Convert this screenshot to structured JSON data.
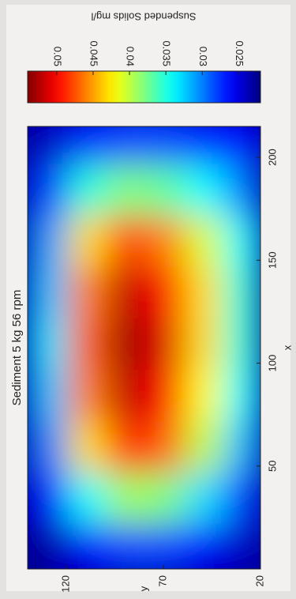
{
  "chart_data": {
    "type": "heatmap",
    "title": "Sediment 5 kg 56 rpm",
    "x_label": "x",
    "y_label": "y",
    "colorbar_label": "Suspended Solids mg/l",
    "colormap": "jet",
    "x": [
      10,
      35,
      60,
      85,
      110,
      135,
      160,
      185,
      210
    ],
    "y": [
      30,
      50,
      70,
      90,
      110,
      130
    ],
    "z": [
      [
        0.024,
        0.028,
        0.032,
        0.034,
        0.035,
        0.035,
        0.034,
        0.03,
        0.026
      ],
      [
        0.026,
        0.033,
        0.04,
        0.042,
        0.043,
        0.043,
        0.041,
        0.034,
        0.027
      ],
      [
        0.028,
        0.038,
        0.047,
        0.05,
        0.051,
        0.05,
        0.046,
        0.037,
        0.028
      ],
      [
        0.028,
        0.039,
        0.049,
        0.052,
        0.053,
        0.052,
        0.048,
        0.038,
        0.028
      ],
      [
        0.026,
        0.034,
        0.043,
        0.046,
        0.047,
        0.046,
        0.043,
        0.035,
        0.027
      ],
      [
        0.023,
        0.026,
        0.03,
        0.032,
        0.033,
        0.032,
        0.031,
        0.028,
        0.024
      ]
    ],
    "xlim": [
      0,
      215
    ],
    "xticks": [
      50,
      100,
      150,
      200
    ],
    "ylim": [
      20,
      140
    ],
    "yticks": [
      20,
      70,
      120
    ],
    "clim": [
      0.022,
      0.054
    ],
    "cticks": [
      0.025,
      0.03,
      0.035,
      0.04,
      0.045,
      0.05
    ]
  }
}
